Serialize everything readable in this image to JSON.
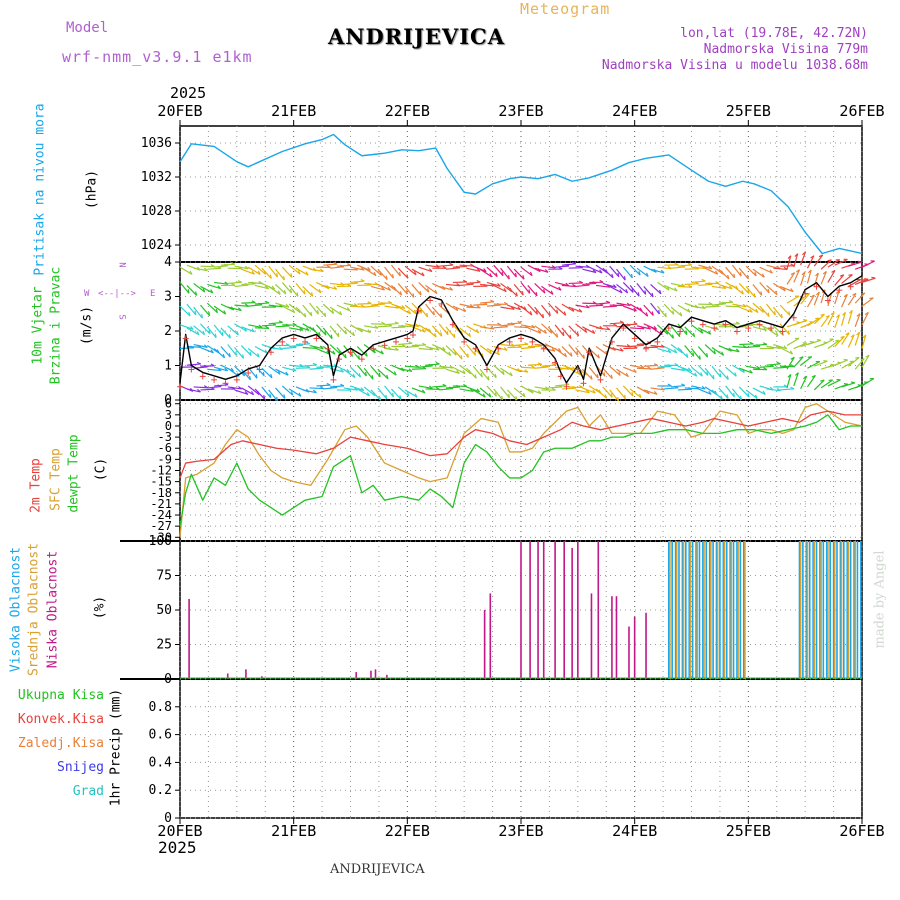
{
  "header": {
    "model_label": "Model",
    "model_name": "wrf-nmm_v3.9.1 e1km",
    "station": "ANDRIJEVICA",
    "product": "Meteogram",
    "lonlat": "lon,lat (19.78E, 42.72N)",
    "elevation": "Nadmorska Visina 779m",
    "model_elevation": "Nadmorska Visina u modelu 1038.68m",
    "footer_station": "ANDRIJEVICA",
    "credit": "made by Angel"
  },
  "colors": {
    "pressure": "#1aa6e8",
    "wind_speed": "#000000",
    "t2m": "#e8423c",
    "tsfc": "#d9a033",
    "dewpoint": "#22c322",
    "cloud_high": "#1aa6e8",
    "cloud_mid": "#d9a033",
    "cloud_low": "#c01888",
    "grid": "#999999",
    "model_label": "#b060d0",
    "product_label": "#e8b458",
    "location_label": "#a040c0"
  },
  "axis": {
    "year_top": "2025",
    "year_bottom": "2025",
    "dates": [
      "20FEB",
      "21FEB",
      "22FEB",
      "23FEB",
      "24FEB",
      "25FEB",
      "26FEB"
    ]
  },
  "panels": {
    "pressure": {
      "title": "Pritisak na nivou mora",
      "unit": "(hPa)",
      "ticks": [
        "1024",
        "1028",
        "1032",
        "1036"
      ]
    },
    "wind": {
      "title_line1": "10m Vjetar",
      "title_line2": "Brzina i Pravac",
      "unit": "(m/s)",
      "ticks": [
        "0",
        "1",
        "2",
        "3",
        "4"
      ],
      "compass_n": "N",
      "compass_w": "W",
      "compass_e": "E",
      "compass_s": "S",
      "compass_arrows": "<--|-->"
    },
    "temperature": {
      "title_t2m": "2m Temp",
      "title_sfc": "SFC Temp",
      "title_dew": "dewpt Temp",
      "unit": "(C)",
      "ticks": [
        "-30",
        "-27",
        "-24",
        "-21",
        "-18",
        "-15",
        "-12",
        "-9",
        "-6",
        "-3",
        "0",
        "3",
        "6"
      ]
    },
    "cloud": {
      "title_high": "Visoka Oblacnost",
      "title_mid": "Srednja Oblacnost",
      "title_low": "Niska Oblacnost",
      "unit": "(%)",
      "ticks": [
        "0",
        "25",
        "50",
        "75",
        "100"
      ]
    },
    "precip": {
      "unit": "1hr Precip (mm)",
      "ticks": [
        "0",
        "0.2",
        "0.4",
        "0.6",
        "0.8"
      ],
      "legend": [
        {
          "label": "Ukupna Kisa",
          "color": "#22c322"
        },
        {
          "label": "Konvek.Kisa",
          "color": "#e8423c"
        },
        {
          "label": "Zaledj.Kisa",
          "color": "#e8813a"
        },
        {
          "label": "Snijeg",
          "color": "#3c3ce8"
        },
        {
          "label": "Grad",
          "color": "#22c3c3"
        }
      ]
    }
  },
  "chart_data": [
    {
      "type": "line",
      "title": "Pritisak na nivou mora",
      "ylabel": "(hPa)",
      "ylim": [
        1022,
        1038
      ],
      "x_unit": "days since 20FEB",
      "series": [
        {
          "name": "Pritisak na nivou mora",
          "x": [
            0,
            0.1,
            0.3,
            0.5,
            0.6,
            0.7,
            0.9,
            1.1,
            1.25,
            1.35,
            1.45,
            1.6,
            1.8,
            1.95,
            2.1,
            2.25,
            2.35,
            2.5,
            2.6,
            2.75,
            2.9,
            3.0,
            3.15,
            3.3,
            3.45,
            3.6,
            3.8,
            3.95,
            4.1,
            4.3,
            4.5,
            4.65,
            4.8,
            4.95,
            5.05,
            5.2,
            5.35,
            5.5,
            5.65,
            5.8,
            5.9,
            6.0
          ],
          "y": [
            1033.8,
            1035.9,
            1035.6,
            1033.8,
            1033.2,
            1033.8,
            1035.0,
            1035.9,
            1036.4,
            1037.0,
            1035.8,
            1034.5,
            1034.8,
            1035.2,
            1035.1,
            1035.4,
            1033.0,
            1030.2,
            1030.0,
            1031.2,
            1031.8,
            1032.0,
            1031.8,
            1032.3,
            1031.5,
            1031.9,
            1032.8,
            1033.7,
            1034.2,
            1034.6,
            1032.8,
            1031.5,
            1030.9,
            1031.5,
            1031.2,
            1030.4,
            1028.5,
            1025.5,
            1023.0,
            1023.6,
            1023.3,
            1023.0
          ]
        }
      ]
    },
    {
      "type": "line",
      "title": "10m Vjetar Brzina i Pravac",
      "ylabel": "(m/s)",
      "ylim": [
        0,
        4
      ],
      "x_unit": "days since 20FEB",
      "series": [
        {
          "name": "10m Vjetar",
          "x": [
            0,
            0.05,
            0.1,
            0.2,
            0.3,
            0.4,
            0.5,
            0.6,
            0.7,
            0.8,
            0.9,
            1.0,
            1.1,
            1.2,
            1.3,
            1.35,
            1.4,
            1.5,
            1.6,
            1.7,
            1.8,
            1.9,
            2.0,
            2.05,
            2.1,
            2.2,
            2.3,
            2.4,
            2.5,
            2.6,
            2.7,
            2.8,
            2.9,
            3.0,
            3.1,
            3.2,
            3.3,
            3.35,
            3.4,
            3.5,
            3.55,
            3.6,
            3.7,
            3.8,
            3.9,
            4.0,
            4.1,
            4.2,
            4.3,
            4.4,
            4.5,
            4.6,
            4.7,
            4.8,
            4.9,
            5.0,
            5.1,
            5.2,
            5.3,
            5.4,
            5.5,
            5.6,
            5.7,
            5.8,
            5.9,
            6.0
          ],
          "y": [
            0.5,
            1.9,
            1.0,
            0.8,
            0.7,
            0.6,
            0.7,
            0.9,
            1.0,
            1.5,
            1.8,
            1.9,
            1.8,
            1.9,
            1.6,
            0.7,
            1.3,
            1.5,
            1.3,
            1.6,
            1.7,
            1.8,
            1.9,
            2.0,
            2.7,
            3.0,
            2.9,
            2.3,
            1.8,
            1.6,
            1.0,
            1.6,
            1.8,
            1.9,
            1.8,
            1.6,
            1.2,
            0.8,
            0.5,
            1.0,
            0.6,
            1.5,
            0.7,
            1.8,
            2.2,
            1.9,
            1.6,
            1.8,
            2.2,
            2.1,
            2.4,
            2.3,
            2.2,
            2.3,
            2.1,
            2.2,
            2.3,
            2.2,
            2.1,
            2.5,
            3.2,
            3.4,
            3.0,
            3.3,
            3.4,
            3.6
          ]
        }
      ]
    },
    {
      "type": "line",
      "title": "2m Temp / SFC Temp / dewpt Temp",
      "ylabel": "(C)",
      "ylim": [
        -31,
        7
      ],
      "x_unit": "days since 20FEB",
      "series": [
        {
          "name": "2m Temp",
          "x": [
            0,
            0.05,
            0.15,
            0.3,
            0.45,
            0.55,
            0.7,
            0.85,
            1.0,
            1.2,
            1.35,
            1.5,
            1.65,
            1.8,
            2.0,
            2.1,
            2.2,
            2.35,
            2.5,
            2.6,
            2.75,
            2.9,
            3.05,
            3.2,
            3.35,
            3.45,
            3.55,
            3.7,
            3.85,
            4.0,
            4.15,
            4.3,
            4.45,
            4.6,
            4.7,
            4.85,
            5.0,
            5.15,
            5.3,
            5.45,
            5.55,
            5.7,
            5.85,
            6.0
          ],
          "y": [
            -14,
            -10,
            -9.5,
            -9,
            -5,
            -4,
            -5,
            -6,
            -6.5,
            -7.5,
            -6,
            -3,
            -4,
            -5,
            -6,
            -7,
            -8,
            -7.5,
            -3,
            -1,
            -2,
            -4,
            -5,
            -3,
            -1,
            1,
            0,
            -1,
            0,
            1,
            2,
            1,
            0,
            1,
            2,
            1,
            0,
            1,
            2,
            1,
            3,
            4,
            3,
            3
          ]
        },
        {
          "name": "SFC Temp",
          "x": [
            0,
            0.05,
            0.15,
            0.3,
            0.4,
            0.5,
            0.6,
            0.7,
            0.8,
            0.9,
            1.0,
            1.15,
            1.3,
            1.45,
            1.55,
            1.65,
            1.8,
            1.95,
            2.1,
            2.2,
            2.35,
            2.5,
            2.65,
            2.8,
            2.9,
            3.0,
            3.1,
            3.2,
            3.3,
            3.4,
            3.5,
            3.6,
            3.7,
            3.8,
            3.95,
            4.05,
            4.2,
            4.35,
            4.5,
            4.6,
            4.75,
            4.9,
            5.0,
            5.1,
            5.2,
            5.3,
            5.4,
            5.5,
            5.6,
            5.7,
            5.85,
            6.0
          ],
          "y": [
            -30,
            -14,
            -13,
            -10,
            -5,
            -1,
            -3,
            -8,
            -12,
            -14,
            -15,
            -16,
            -9,
            -1,
            0,
            -3,
            -10,
            -12,
            -14,
            -15,
            -14,
            -2,
            2,
            1,
            -7,
            -7,
            -6,
            -2,
            1,
            4,
            5,
            0,
            3,
            -2,
            -2,
            -2,
            4,
            3,
            -3,
            -2,
            4,
            3,
            -2,
            -1,
            -1,
            -2,
            -1,
            5,
            6,
            4,
            1,
            0
          ]
        },
        {
          "name": "dewpt Temp",
          "x": [
            0,
            0.05,
            0.1,
            0.2,
            0.3,
            0.4,
            0.5,
            0.6,
            0.7,
            0.8,
            0.9,
            1.0,
            1.1,
            1.25,
            1.35,
            1.5,
            1.6,
            1.7,
            1.8,
            1.95,
            2.1,
            2.2,
            2.3,
            2.4,
            2.5,
            2.6,
            2.7,
            2.8,
            2.9,
            3.0,
            3.1,
            3.2,
            3.3,
            3.45,
            3.6,
            3.7,
            3.8,
            3.9,
            4.0,
            4.15,
            4.3,
            4.45,
            4.6,
            4.75,
            4.9,
            5.05,
            5.2,
            5.35,
            5.5,
            5.6,
            5.7,
            5.8,
            5.9,
            6.0
          ],
          "y": [
            -27,
            -18,
            -13,
            -20,
            -14,
            -16,
            -10,
            -17,
            -20,
            -22,
            -24,
            -22,
            -20,
            -19,
            -11,
            -8,
            -18,
            -16,
            -20,
            -19,
            -20,
            -17,
            -19,
            -22,
            -10,
            -5,
            -7,
            -11,
            -14,
            -14,
            -12,
            -7,
            -6,
            -6,
            -4,
            -4,
            -3,
            -3,
            -2,
            -2,
            -1,
            -1,
            -2,
            -2,
            -1,
            -1,
            -2,
            -1,
            0,
            1,
            3,
            -1,
            0,
            0
          ]
        }
      ]
    },
    {
      "type": "bar",
      "title": "Visoka / Srednja / Niska Oblacnost",
      "ylabel": "(%)",
      "ylim": [
        0,
        100
      ],
      "x_unit": "days since 20FEB",
      "series": [
        {
          "name": "Niska Oblacnost",
          "x": [
            0.08,
            0.42,
            0.58,
            0.72,
            1.55,
            1.68,
            1.72,
            1.82,
            2.68,
            2.73,
            3.0,
            3.08,
            3.15,
            3.2,
            3.3,
            3.38,
            3.45,
            3.5,
            3.62,
            3.68,
            3.8,
            3.84,
            3.95,
            4.0,
            4.1
          ],
          "y": [
            58,
            4,
            7,
            2,
            5,
            6,
            7,
            3,
            50,
            62,
            100,
            100,
            100,
            100,
            100,
            100,
            95,
            100,
            62,
            100,
            60,
            60,
            38,
            45,
            48
          ]
        },
        {
          "name": "Visoka Oblacnost",
          "x": [
            4.3,
            4.33,
            4.36,
            4.39,
            4.42,
            4.45,
            4.48,
            4.51,
            4.54,
            4.57,
            4.6,
            4.63,
            4.66,
            4.69,
            4.72,
            4.75,
            4.78,
            4.81,
            4.84,
            4.87,
            4.9,
            4.93,
            4.96,
            5.45,
            5.48,
            5.51,
            5.54,
            5.57,
            5.6,
            5.63,
            5.66,
            5.69,
            5.72,
            5.75,
            5.78,
            5.81,
            5.84,
            5.87,
            5.9,
            5.93,
            5.96,
            5.99
          ],
          "y": [
            100,
            100,
            100,
            100,
            100,
            100,
            100,
            100,
            100,
            100,
            100,
            100,
            100,
            100,
            100,
            100,
            100,
            100,
            100,
            100,
            100,
            100,
            100,
            100,
            100,
            100,
            100,
            100,
            100,
            100,
            100,
            100,
            100,
            100,
            100,
            100,
            100,
            100,
            100,
            100,
            100,
            100
          ]
        },
        {
          "name": "Srednja Oblacnost",
          "x": [
            4.31,
            4.37,
            4.43,
            4.49,
            4.55,
            4.61,
            4.67,
            4.73,
            4.79,
            4.85,
            4.91,
            4.97,
            5.46,
            5.52,
            5.58,
            5.64,
            5.7,
            5.76,
            5.82,
            5.88,
            5.94
          ],
          "y": [
            100,
            100,
            100,
            100,
            100,
            100,
            100,
            100,
            100,
            100,
            100,
            100,
            100,
            100,
            100,
            100,
            100,
            100,
            100,
            100,
            100
          ]
        }
      ]
    },
    {
      "type": "bar",
      "title": "1hr Precip",
      "ylabel": "1hr Precip (mm)",
      "ylim": [
        0,
        1
      ],
      "x_unit": "days since 20FEB",
      "series": [
        {
          "name": "Ukupna Kisa",
          "x": [],
          "y": []
        }
      ]
    }
  ]
}
